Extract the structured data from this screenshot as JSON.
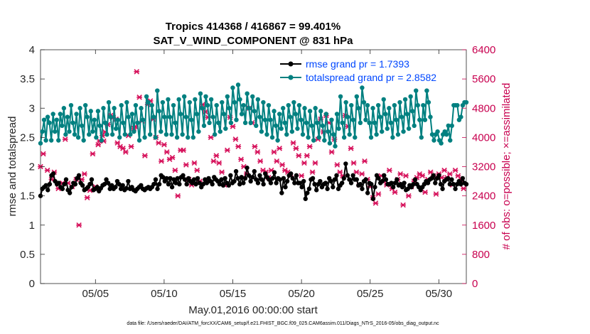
{
  "chart_data": {
    "type": "line",
    "title_line1": "Tropics 414368 / 416867 = 99.401%",
    "title_line2": "SAT_V_WIND_COMPONENT @ 831 hPa",
    "xlabel": "May.01,2016 00:00:00 start",
    "ylabel": "rmse and totalspread",
    "y2label": "# of obs: o=possible; ×=assimilated",
    "xlim": [
      1,
      32
    ],
    "ylim": [
      0,
      4
    ],
    "y2lim": [
      0,
      6400
    ],
    "x_ticks": [
      5,
      10,
      15,
      20,
      25,
      30
    ],
    "x_tick_labels": [
      "05/05",
      "05/10",
      "05/15",
      "05/20",
      "05/25",
      "05/30"
    ],
    "y_ticks": [
      0,
      0.5,
      1,
      1.5,
      2,
      2.5,
      3,
      3.5,
      4
    ],
    "y_tick_labels": [
      "0",
      "0.5",
      "1",
      "1.5",
      "2",
      "2.5",
      "3",
      "3.5",
      "4"
    ],
    "y2_ticks": [
      0,
      800,
      1600,
      2400,
      3200,
      4000,
      4800,
      5600,
      6400
    ],
    "y2_tick_labels": [
      "0",
      "800",
      "1600",
      "2400",
      "3200",
      "4000",
      "4800",
      "5600",
      "6400"
    ],
    "legend": [
      {
        "label": "rmse grand pr = 1.7393",
        "color": "#000000"
      },
      {
        "label": "totalspread grand pr = 2.8582",
        "color": "#008080"
      }
    ],
    "colors": {
      "rmse": "#000000",
      "spread": "#008080",
      "obs": "#d6105a",
      "right_axis": "#c8004f",
      "legend_text": "#0047ff"
    },
    "series": [
      {
        "name": "rmse",
        "values": [
          1.5,
          1.62,
          1.65,
          1.68,
          1.6,
          1.7,
          1.85,
          1.88,
          1.75,
          1.7,
          1.72,
          1.65,
          1.62,
          1.7,
          1.78,
          1.6,
          1.55,
          1.65,
          1.72,
          1.7,
          1.8,
          1.85,
          1.72,
          1.68,
          1.6,
          1.62,
          1.65,
          1.7,
          1.78,
          1.6,
          1.62,
          1.65,
          1.58,
          1.63,
          1.68,
          1.7,
          1.78,
          1.72,
          1.62,
          1.68,
          1.62,
          1.65,
          1.75,
          1.7,
          1.62,
          1.68,
          1.6,
          1.63,
          1.75,
          1.62,
          1.65,
          1.6,
          1.58,
          1.62,
          1.65,
          1.68,
          1.62,
          1.6,
          1.63,
          1.65,
          1.62,
          1.65,
          1.7,
          1.78,
          1.62,
          1.7,
          1.85,
          1.82,
          1.75,
          1.8,
          1.7,
          1.8,
          1.65,
          1.78,
          1.72,
          1.8,
          1.7,
          1.82,
          1.85,
          1.78,
          1.7,
          1.8,
          1.75,
          1.72,
          1.78,
          1.7,
          1.8,
          1.72,
          1.65,
          1.7,
          1.78,
          1.72,
          1.8,
          1.75,
          1.7,
          1.82,
          1.78,
          1.75,
          1.7,
          1.78,
          1.68,
          1.8,
          1.72,
          1.68,
          1.85,
          1.72,
          1.75,
          1.92,
          1.8,
          1.7,
          1.82,
          1.72,
          1.8,
          1.98,
          1.85,
          1.75,
          1.82,
          1.92,
          1.78,
          1.72,
          1.85,
          1.78,
          1.7,
          1.88,
          1.82,
          1.78,
          1.72,
          1.8,
          1.9,
          1.72,
          1.8,
          1.78,
          1.55,
          1.8,
          1.65,
          1.75,
          1.85,
          1.88,
          1.8,
          1.72,
          1.85,
          1.72,
          1.72,
          1.65,
          1.75,
          1.45,
          1.55,
          1.62,
          1.78,
          1.8,
          1.7,
          1.6,
          1.7,
          1.75,
          1.65,
          1.7,
          1.72,
          1.62,
          1.8,
          1.75,
          1.65,
          1.78,
          1.85,
          1.62,
          1.68,
          1.72,
          1.8,
          2.05,
          1.85,
          1.78,
          1.72,
          1.85,
          1.78,
          1.78,
          1.68,
          1.7,
          1.62,
          1.75,
          1.78,
          1.55,
          1.72,
          1.7,
          1.45,
          1.65,
          1.85,
          1.8,
          1.72,
          1.75,
          1.85,
          1.78,
          1.7,
          1.7,
          1.72,
          1.65,
          1.72,
          1.78,
          1.68,
          1.7,
          1.65,
          1.72,
          1.6,
          1.62,
          1.68,
          1.65,
          1.7,
          1.78,
          1.7,
          1.65,
          1.6,
          1.65,
          1.7,
          1.75,
          1.72,
          1.78,
          1.8,
          1.85,
          1.72,
          1.8,
          1.85,
          1.7,
          1.62,
          1.75,
          1.78,
          1.8,
          1.7,
          1.78,
          1.7,
          1.62,
          1.7,
          1.75,
          1.7,
          1.8,
          1.72,
          1.7
        ]
      },
      {
        "name": "totalspread",
        "values": [
          2.4,
          2.6,
          2.8,
          2.45,
          2.85,
          2.75,
          2.45,
          2.9,
          2.6,
          2.8,
          2.45,
          2.9,
          2.7,
          3.0,
          2.55,
          2.85,
          2.6,
          3.05,
          2.75,
          2.55,
          2.9,
          2.5,
          3.0,
          2.7,
          2.45,
          3.05,
          2.85,
          2.55,
          2.95,
          2.6,
          2.8,
          2.5,
          2.95,
          2.7,
          2.45,
          3.0,
          2.75,
          2.55,
          3.1,
          2.85,
          2.55,
          3.0,
          2.65,
          2.8,
          2.5,
          3.05,
          2.75,
          2.55,
          3.1,
          2.85,
          2.55,
          2.9,
          2.6,
          3.05,
          2.75,
          2.45,
          3.0,
          2.8,
          2.5,
          3.2,
          3.1,
          2.55,
          3.05,
          2.85,
          2.5,
          3.3,
          2.95,
          2.6,
          3.1,
          2.85,
          2.55,
          3.15,
          2.85,
          2.55,
          3.05,
          2.75,
          2.5,
          3.15,
          2.9,
          2.55,
          3.2,
          2.85,
          2.5,
          3.1,
          2.8,
          2.5,
          3.15,
          2.9,
          2.6,
          3.25,
          3.0,
          2.7,
          3.2,
          3.05,
          2.75,
          3.15,
          2.85,
          2.55,
          3.05,
          2.75,
          2.6,
          3.1,
          2.9,
          2.65,
          3.2,
          3.0,
          2.75,
          3.35,
          3.1,
          2.8,
          3.4,
          3.15,
          2.9,
          3.05,
          2.75,
          3.25,
          3.0,
          2.75,
          3.2,
          2.95,
          2.7,
          3.15,
          2.85,
          2.6,
          3.1,
          2.8,
          2.55,
          3.05,
          2.8,
          2.5,
          2.95,
          2.7,
          2.45,
          2.9,
          2.65,
          3.0,
          2.75,
          2.55,
          3.05,
          2.85,
          2.6,
          3.1,
          2.9,
          2.65,
          3.05,
          2.8,
          2.55,
          3.0,
          2.75,
          2.5,
          2.95,
          2.7,
          2.45,
          3.0,
          2.75,
          2.5,
          2.95,
          2.7,
          2.45,
          2.9,
          2.6,
          2.4,
          2.8,
          2.55,
          2.35,
          2.9,
          2.65,
          3.2,
          2.75,
          2.5,
          3.1,
          2.85,
          2.55,
          3.05,
          2.8,
          2.5,
          3.2,
          3.0,
          2.75,
          3.35,
          3.1,
          2.8,
          3.05,
          2.75,
          2.5,
          3.0,
          2.75,
          2.55,
          3.05,
          2.85,
          2.6,
          3.15,
          2.9,
          2.65,
          3.0,
          2.75,
          2.5,
          3.05,
          2.8,
          2.55,
          3.1,
          2.85,
          2.6,
          3.15,
          2.9,
          2.65,
          3.2,
          2.95,
          2.7,
          3.3,
          3.05,
          2.8,
          2.5,
          3.05,
          2.8,
          3.3,
          3.1,
          2.85,
          2.55,
          2.45,
          2.55,
          2.6,
          2.45,
          2.4,
          2.55,
          2.6,
          2.55,
          2.7,
          2.45,
          2.7,
          3.05,
          3.05,
          3.05,
          2.8,
          2.85,
          3.05,
          3.1,
          3.1
        ]
      }
    ],
    "obs_count_points": [
      [
        1.0,
        3200
      ],
      [
        1.2,
        3550
      ],
      [
        1.5,
        3100
      ],
      [
        1.8,
        2850
      ],
      [
        2.0,
        3050
      ],
      [
        2.3,
        2600
      ],
      [
        2.6,
        2750
      ],
      [
        2.8,
        3950
      ],
      [
        3.0,
        2750
      ],
      [
        3.3,
        2650
      ],
      [
        3.6,
        2850
      ],
      [
        3.8,
        1600
      ],
      [
        4.0,
        2850
      ],
      [
        4.2,
        3000
      ],
      [
        4.4,
        2350
      ],
      [
        4.6,
        2550
      ],
      [
        4.8,
        3550
      ],
      [
        5.0,
        2650
      ],
      [
        5.2,
        3800
      ],
      [
        5.3,
        3900
      ],
      [
        5.5,
        4050
      ],
      [
        5.6,
        3900
      ],
      [
        5.7,
        4150
      ],
      [
        5.9,
        4350
      ],
      [
        6.1,
        4600
      ],
      [
        6.3,
        4550
      ],
      [
        6.5,
        4500
      ],
      [
        6.6,
        3850
      ],
      [
        6.8,
        3750
      ],
      [
        7.0,
        3700
      ],
      [
        7.2,
        3600
      ],
      [
        7.4,
        4050
      ],
      [
        7.6,
        3750
      ],
      [
        7.8,
        4250
      ],
      [
        7.9,
        4300
      ],
      [
        8.0,
        5800
      ],
      [
        8.2,
        5100
      ],
      [
        8.4,
        4450
      ],
      [
        8.6,
        3500
      ],
      [
        8.8,
        4900
      ],
      [
        9.0,
        5000
      ],
      [
        9.2,
        4500
      ],
      [
        9.4,
        4000
      ],
      [
        9.6,
        3850
      ],
      [
        9.8,
        3350
      ],
      [
        10.0,
        3800
      ],
      [
        10.2,
        3600
      ],
      [
        10.4,
        3400
      ],
      [
        10.6,
        3450
      ],
      [
        10.8,
        3100
      ],
      [
        11.0,
        2400
      ],
      [
        11.2,
        3650
      ],
      [
        11.4,
        3650
      ],
      [
        11.6,
        3250
      ],
      [
        11.8,
        2850
      ],
      [
        12.0,
        2700
      ],
      [
        12.2,
        3300
      ],
      [
        12.4,
        3100
      ],
      [
        12.6,
        2800
      ],
      [
        12.8,
        4900
      ],
      [
        13.0,
        4700
      ],
      [
        13.2,
        4550
      ],
      [
        13.4,
        4000
      ],
      [
        13.6,
        3350
      ],
      [
        13.8,
        3500
      ],
      [
        14.0,
        3300
      ],
      [
        14.2,
        3050
      ],
      [
        14.4,
        2700
      ],
      [
        14.6,
        3650
      ],
      [
        14.8,
        4550
      ],
      [
        15.0,
        4300
      ],
      [
        15.2,
        3950
      ],
      [
        15.4,
        3750
      ],
      [
        15.6,
        3400
      ],
      [
        15.8,
        3200
      ],
      [
        16.0,
        3000
      ],
      [
        16.2,
        4800
      ],
      [
        16.4,
        4400
      ],
      [
        16.6,
        3750
      ],
      [
        16.8,
        3600
      ],
      [
        17.0,
        3350
      ],
      [
        17.2,
        3100
      ],
      [
        17.4,
        3050
      ],
      [
        17.6,
        2900
      ],
      [
        17.8,
        3100
      ],
      [
        18.0,
        3600
      ],
      [
        18.2,
        3350
      ],
      [
        18.4,
        3700
      ],
      [
        18.6,
        3250
      ],
      [
        18.8,
        3100
      ],
      [
        19.0,
        3050
      ],
      [
        19.2,
        2950
      ],
      [
        19.4,
        3850
      ],
      [
        19.6,
        3700
      ],
      [
        19.8,
        3500
      ],
      [
        20.0,
        2950
      ],
      [
        20.2,
        3300
      ],
      [
        20.4,
        3500
      ],
      [
        20.6,
        3750
      ],
      [
        20.8,
        3050
      ],
      [
        21.0,
        3300
      ],
      [
        21.2,
        3950
      ],
      [
        21.4,
        4500
      ],
      [
        21.6,
        4150
      ],
      [
        21.8,
        4600
      ],
      [
        22.0,
        4400
      ],
      [
        22.2,
        3600
      ],
      [
        22.4,
        3950
      ],
      [
        22.6,
        3250
      ],
      [
        22.8,
        3050
      ],
      [
        23.0,
        2950
      ],
      [
        23.2,
        4600
      ],
      [
        23.4,
        4300
      ],
      [
        23.6,
        3700
      ],
      [
        23.8,
        3300
      ],
      [
        24.0,
        3050
      ],
      [
        24.2,
        2700
      ],
      [
        24.4,
        3000
      ],
      [
        24.6,
        3350
      ],
      [
        24.8,
        2850
      ],
      [
        25.0,
        2650
      ],
      [
        25.2,
        2350
      ],
      [
        25.4,
        2200
      ],
      [
        25.6,
        2450
      ],
      [
        25.8,
        2950
      ],
      [
        26.0,
        2800
      ],
      [
        26.2,
        2700
      ],
      [
        26.4,
        3100
      ],
      [
        26.6,
        2600
      ],
      [
        26.8,
        2500
      ],
      [
        27.0,
        2850
      ],
      [
        27.2,
        3000
      ],
      [
        27.4,
        2150
      ],
      [
        27.6,
        2950
      ],
      [
        27.8,
        2400
      ],
      [
        28.0,
        2650
      ],
      [
        28.2,
        2800
      ],
      [
        28.4,
        2900
      ],
      [
        28.6,
        3000
      ],
      [
        28.8,
        2950
      ],
      [
        29.0,
        2500
      ],
      [
        29.2,
        2850
      ],
      [
        29.4,
        3050
      ],
      [
        29.6,
        2950
      ],
      [
        29.8,
        2450
      ],
      [
        30.0,
        3000
      ],
      [
        30.2,
        2900
      ],
      [
        30.4,
        3100
      ],
      [
        30.6,
        2900
      ],
      [
        30.8,
        3000
      ],
      [
        31.0,
        2700
      ],
      [
        31.2,
        3100
      ],
      [
        31.4,
        2950
      ],
      [
        31.6,
        2850
      ],
      [
        31.8,
        2600
      ]
    ]
  },
  "footer": {
    "data_file": "data file: /Users/raeder/DAI/ATM_forcXX/CAM6_setup/f.e21.FHIST_BGC.f09_025.CAM6assim.011/Diags_NTrS_2016-05/obs_diag_output.nc"
  }
}
